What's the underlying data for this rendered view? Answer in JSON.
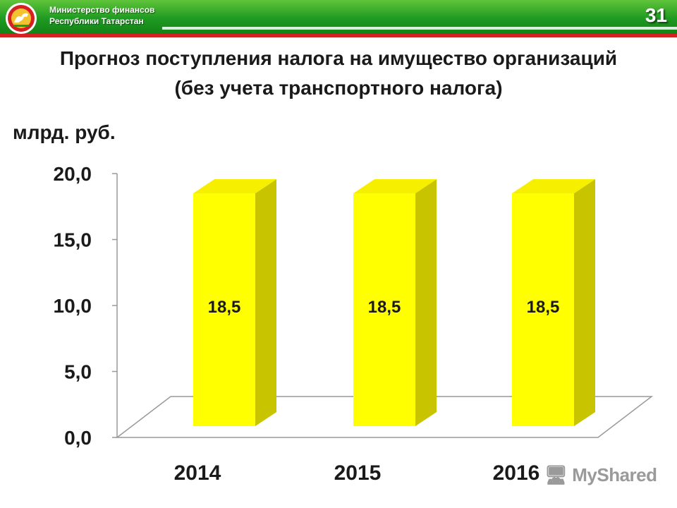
{
  "header": {
    "org_line1": "Министерство финансов",
    "org_line2": "Республики Татарстан",
    "page_number": "31",
    "colors": {
      "bar": "#1f9a22",
      "stripe": "#d42020"
    }
  },
  "slide": {
    "title_line1": "Прогноз поступления налога на имущество организаций",
    "title_line2": "(без учета транспортного налога)",
    "unit": "млрд. руб."
  },
  "watermark": "MyShared",
  "chart_data": {
    "type": "bar",
    "categories": [
      "2014",
      "2015",
      "2016"
    ],
    "values": [
      18.5,
      18.5,
      18.5
    ],
    "value_labels": [
      "18,5",
      "18,5",
      "18,5"
    ],
    "ylim": [
      0,
      20
    ],
    "yticks": [
      0,
      5,
      10,
      15,
      20
    ],
    "ytick_labels": [
      "0,0",
      "5,0",
      "10,0",
      "15,0",
      "20,0"
    ],
    "bar_color": "#ffff00",
    "style": "3d-column",
    "grid": false
  }
}
